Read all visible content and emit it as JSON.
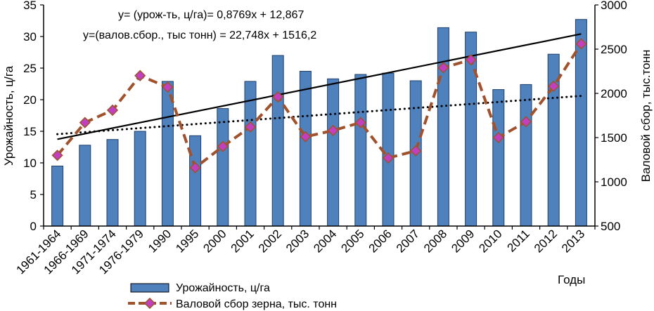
{
  "chart_data": {
    "type": "bar",
    "categories": [
      "1961-1964",
      "1966-1969",
      "1971-1974",
      "1976-1979",
      "1990",
      "1995",
      "2000",
      "2001",
      "2002",
      "2003",
      "2004",
      "2005",
      "2006",
      "2007",
      "2008",
      "2009",
      "2010",
      "2011",
      "2012",
      "2013"
    ],
    "series": [
      {
        "name": "Урожайность, ц/га",
        "type": "bar",
        "axis": "left",
        "color": "#4F81BD",
        "values": [
          9.5,
          12.8,
          13.7,
          15.0,
          22.9,
          14.3,
          18.6,
          22.9,
          27.0,
          24.5,
          23.3,
          24.0,
          24.2,
          23.0,
          31.4,
          30.7,
          21.6,
          22.4,
          27.2,
          32.7
        ]
      },
      {
        "name": "Валовой сбор зерна, тыс. тонн",
        "type": "line",
        "axis": "right",
        "color": "#A0522D",
        "marker_color": "#C040C0",
        "values": [
          1300,
          1670,
          1810,
          2200,
          2070,
          1160,
          1400,
          1620,
          1960,
          1510,
          1580,
          1670,
          1270,
          1350,
          2290,
          2380,
          1500,
          1680,
          2080,
          2560
        ]
      }
    ],
    "trendlines": [
      {
        "series": "Урожайность, ц/га",
        "style": "solid",
        "slope": 0.8769,
        "intercept": 12.867
      },
      {
        "series": "Валовой сбор зерна, тыс. тонн",
        "style": "dotted",
        "slope": 22.748,
        "intercept": 1516.2
      }
    ],
    "equations": [
      "y= (урож-ть, ц/га)= 0,8769x + 12,867",
      "y=(валов.сбор., тыс тонн) = 22,748x + 1516,2"
    ],
    "ylabel": "Урожайность, ц/га",
    "y2label": "Валовой сбор, тыс.тонн",
    "xlabel": "Годы",
    "ylim": [
      0,
      35
    ],
    "y2lim": [
      500,
      3000
    ],
    "yticks": [
      0,
      5,
      10,
      15,
      20,
      25,
      30,
      35
    ],
    "y2ticks": [
      500,
      1000,
      1500,
      2000,
      2500,
      3000
    ],
    "grid": false,
    "legend_position": "bottom"
  }
}
